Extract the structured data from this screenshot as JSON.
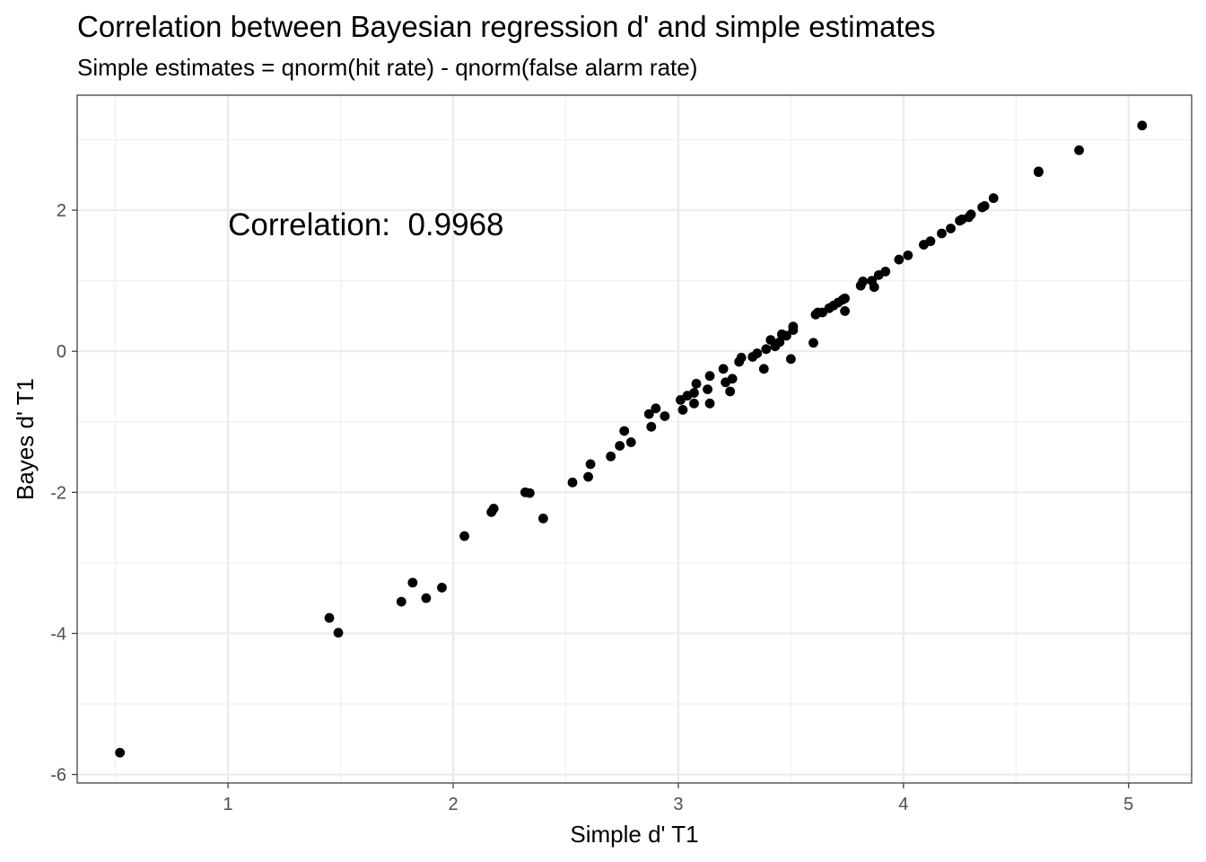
{
  "chart_data": {
    "type": "scatter",
    "title": "Correlation between Bayesian regression d' and simple estimates",
    "subtitle": "Simple estimates = qnorm(hit rate) - qnorm(false alarm rate)",
    "xlabel": "Simple d' T1",
    "ylabel": "Bayes d' T1",
    "xlim": [
      0.33,
      5.28
    ],
    "ylim": [
      -6.12,
      3.63
    ],
    "xticks": [
      1,
      2,
      3,
      4,
      5
    ],
    "yticks": [
      -6,
      -4,
      -2,
      0,
      2
    ],
    "grid": true,
    "point_color": "#000000",
    "annotation": {
      "text": "Correlation:  0.9968",
      "x": 1.0,
      "y": 1.8
    },
    "points": [
      [
        0.52,
        -5.69
      ],
      [
        1.45,
        -3.78
      ],
      [
        1.49,
        -3.99
      ],
      [
        1.77,
        -3.55
      ],
      [
        1.82,
        -3.28
      ],
      [
        1.88,
        -3.5
      ],
      [
        1.95,
        -3.35
      ],
      [
        2.05,
        -2.62
      ],
      [
        2.17,
        -2.28
      ],
      [
        2.18,
        -2.23
      ],
      [
        2.32,
        -2.0
      ],
      [
        2.34,
        -2.01
      ],
      [
        2.4,
        -2.37
      ],
      [
        2.53,
        -1.86
      ],
      [
        2.6,
        -1.78
      ],
      [
        2.61,
        -1.6
      ],
      [
        2.7,
        -1.49
      ],
      [
        2.74,
        -1.34
      ],
      [
        2.76,
        -1.13
      ],
      [
        2.79,
        -1.29
      ],
      [
        2.87,
        -0.89
      ],
      [
        2.88,
        -1.07
      ],
      [
        2.9,
        -0.81
      ],
      [
        2.94,
        -0.92
      ],
      [
        3.01,
        -0.69
      ],
      [
        3.02,
        -0.83
      ],
      [
        3.04,
        -0.63
      ],
      [
        3.07,
        -0.59
      ],
      [
        3.07,
        -0.74
      ],
      [
        3.08,
        -0.46
      ],
      [
        3.13,
        -0.54
      ],
      [
        3.14,
        -0.74
      ],
      [
        3.14,
        -0.35
      ],
      [
        3.2,
        -0.25
      ],
      [
        3.21,
        -0.44
      ],
      [
        3.23,
        -0.57
      ],
      [
        3.24,
        -0.39
      ],
      [
        3.27,
        -0.15
      ],
      [
        3.28,
        -0.09
      ],
      [
        3.33,
        -0.08
      ],
      [
        3.35,
        -0.03
      ],
      [
        3.38,
        -0.25
      ],
      [
        3.39,
        0.03
      ],
      [
        3.41,
        0.16
      ],
      [
        3.43,
        0.07
      ],
      [
        3.45,
        0.13
      ],
      [
        3.46,
        0.24
      ],
      [
        3.48,
        0.22
      ],
      [
        3.5,
        -0.11
      ],
      [
        3.51,
        0.3
      ],
      [
        3.51,
        0.35
      ],
      [
        3.6,
        0.12
      ],
      [
        3.61,
        0.52
      ],
      [
        3.62,
        0.55
      ],
      [
        3.64,
        0.55
      ],
      [
        3.67,
        0.61
      ],
      [
        3.69,
        0.65
      ],
      [
        3.71,
        0.69
      ],
      [
        3.73,
        0.73
      ],
      [
        3.74,
        0.75
      ],
      [
        3.74,
        0.57
      ],
      [
        3.81,
        0.93
      ],
      [
        3.82,
        0.99
      ],
      [
        3.86,
        1.0
      ],
      [
        3.87,
        0.91
      ],
      [
        3.89,
        1.08
      ],
      [
        3.92,
        1.13
      ],
      [
        3.98,
        1.3
      ],
      [
        4.02,
        1.36
      ],
      [
        4.09,
        1.51
      ],
      [
        4.12,
        1.56
      ],
      [
        4.17,
        1.67
      ],
      [
        4.21,
        1.74
      ],
      [
        4.25,
        1.85
      ],
      [
        4.26,
        1.87
      ],
      [
        4.29,
        1.9
      ],
      [
        4.3,
        1.94
      ],
      [
        4.35,
        2.04
      ],
      [
        4.36,
        2.06
      ],
      [
        4.4,
        2.17
      ],
      [
        4.6,
        2.54
      ],
      [
        4.6,
        2.55
      ],
      [
        4.78,
        2.85
      ],
      [
        5.06,
        3.2
      ]
    ]
  }
}
